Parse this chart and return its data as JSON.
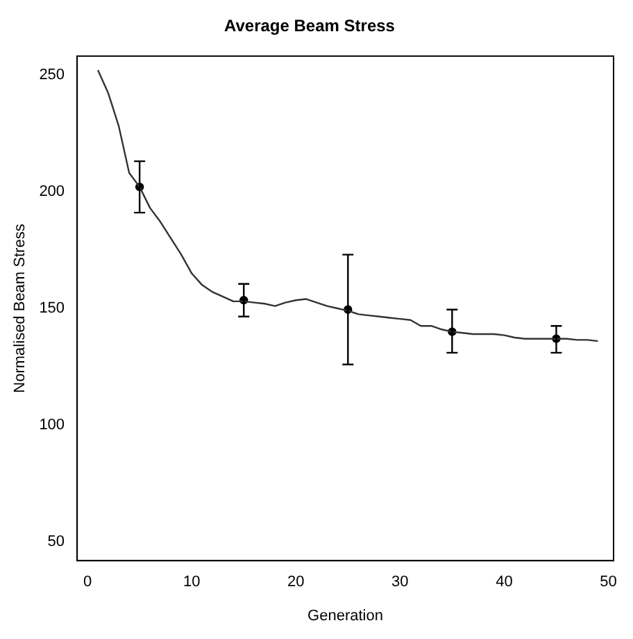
{
  "chart_data": {
    "type": "line",
    "title": "Average Beam Stress",
    "xlabel": "Generation",
    "ylabel": "Normalised Beam Stress",
    "xlim": [
      -1,
      50.5
    ],
    "ylim": [
      42,
      258
    ],
    "xticks": [
      0,
      10,
      20,
      30,
      40,
      50
    ],
    "yticks": [
      50,
      100,
      150,
      200,
      250
    ],
    "grid": false,
    "legend": false,
    "series": [
      {
        "color": "#333333",
        "marker": "none",
        "x": [
          1,
          2,
          3,
          4,
          5,
          6,
          7,
          8,
          9,
          10,
          11,
          12,
          13,
          14,
          15,
          16,
          17,
          18,
          19,
          20,
          21,
          22,
          23,
          24,
          25,
          26,
          27,
          28,
          29,
          30,
          31,
          32,
          33,
          34,
          35,
          36,
          37,
          38,
          39,
          40,
          41,
          42,
          43,
          44,
          45,
          46,
          47,
          48,
          49
        ],
        "values": [
          252,
          242,
          228,
          208,
          202,
          193,
          187,
          180,
          173,
          165,
          160,
          157,
          155,
          153,
          153,
          152.5,
          152,
          151,
          152.5,
          153.5,
          154,
          152.5,
          151,
          150,
          149,
          147.5,
          147,
          146.5,
          146,
          145.5,
          145,
          142.5,
          142.5,
          141,
          140,
          139.5,
          139,
          139,
          139,
          138.5,
          137.5,
          137,
          137,
          137,
          137,
          137,
          136.5,
          136.5,
          136
        ]
      },
      {
        "type": "scatter",
        "color": "#000000",
        "marker": "circle",
        "x": [
          5,
          15,
          25,
          35,
          45
        ],
        "values": [
          202,
          153.5,
          149.5,
          140,
          137
        ],
        "errors": [
          [
            191,
            213
          ],
          [
            146.5,
            160.5
          ],
          [
            126,
            173
          ],
          [
            131,
            149.5
          ],
          [
            131,
            142.5
          ]
        ]
      }
    ]
  }
}
